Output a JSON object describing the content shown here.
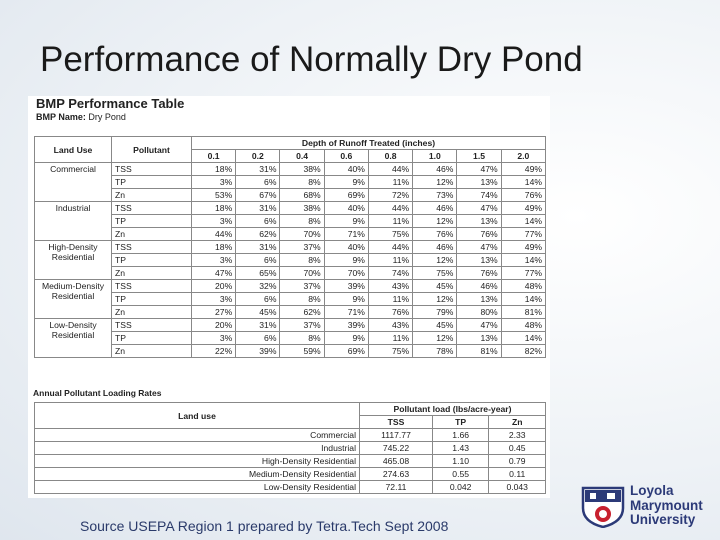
{
  "slide": {
    "title": "Performance of Normally Dry Pond",
    "source": "Source USEPA Region 1 prepared by Tetra.Tech Sept 2008"
  },
  "doc": {
    "title": "BMP Performance Table",
    "bmp_label": "BMP Name:",
    "bmp_value": "Dry Pond"
  },
  "table1": {
    "h_land_use": "Land Use",
    "h_pollutant": "Pollutant",
    "h_depth": "Depth of Runoff Treated (inches)",
    "depths": [
      "0.1",
      "0.2",
      "0.4",
      "0.6",
      "0.8",
      "1.0",
      "1.5",
      "2.0"
    ],
    "groups": [
      {
        "land_use": "Commercial",
        "rows": [
          {
            "pollutant": "TSS",
            "values": [
              "18%",
              "31%",
              "38%",
              "40%",
              "44%",
              "46%",
              "47%",
              "49%"
            ]
          },
          {
            "pollutant": "TP",
            "values": [
              "3%",
              "6%",
              "8%",
              "9%",
              "11%",
              "12%",
              "13%",
              "14%"
            ]
          },
          {
            "pollutant": "Zn",
            "values": [
              "53%",
              "67%",
              "68%",
              "69%",
              "72%",
              "73%",
              "74%",
              "76%"
            ]
          }
        ]
      },
      {
        "land_use": "Industrial",
        "rows": [
          {
            "pollutant": "TSS",
            "values": [
              "18%",
              "31%",
              "38%",
              "40%",
              "44%",
              "46%",
              "47%",
              "49%"
            ]
          },
          {
            "pollutant": "TP",
            "values": [
              "3%",
              "6%",
              "8%",
              "9%",
              "11%",
              "12%",
              "13%",
              "14%"
            ]
          },
          {
            "pollutant": "Zn",
            "values": [
              "44%",
              "62%",
              "70%",
              "71%",
              "75%",
              "76%",
              "76%",
              "77%"
            ]
          }
        ]
      },
      {
        "land_use": "High-Density Residential",
        "rows": [
          {
            "pollutant": "TSS",
            "values": [
              "18%",
              "31%",
              "37%",
              "40%",
              "44%",
              "46%",
              "47%",
              "49%"
            ]
          },
          {
            "pollutant": "TP",
            "values": [
              "3%",
              "6%",
              "8%",
              "9%",
              "11%",
              "12%",
              "13%",
              "14%"
            ]
          },
          {
            "pollutant": "Zn",
            "values": [
              "47%",
              "65%",
              "70%",
              "70%",
              "74%",
              "75%",
              "76%",
              "77%"
            ]
          }
        ]
      },
      {
        "land_use": "Medium-Density Residential",
        "rows": [
          {
            "pollutant": "TSS",
            "values": [
              "20%",
              "32%",
              "37%",
              "39%",
              "43%",
              "45%",
              "46%",
              "48%"
            ]
          },
          {
            "pollutant": "TP",
            "values": [
              "3%",
              "6%",
              "8%",
              "9%",
              "11%",
              "12%",
              "13%",
              "14%"
            ]
          },
          {
            "pollutant": "Zn",
            "values": [
              "27%",
              "45%",
              "62%",
              "71%",
              "76%",
              "79%",
              "80%",
              "81%"
            ]
          }
        ]
      },
      {
        "land_use": "Low-Density Residential",
        "rows": [
          {
            "pollutant": "TSS",
            "values": [
              "20%",
              "31%",
              "37%",
              "39%",
              "43%",
              "45%",
              "47%",
              "48%"
            ]
          },
          {
            "pollutant": "TP",
            "values": [
              "3%",
              "6%",
              "8%",
              "9%",
              "11%",
              "12%",
              "13%",
              "14%"
            ]
          },
          {
            "pollutant": "Zn",
            "values": [
              "22%",
              "39%",
              "59%",
              "69%",
              "75%",
              "78%",
              "81%",
              "82%"
            ]
          }
        ]
      }
    ]
  },
  "table2": {
    "section_title": "Annual Pollutant Loading Rates",
    "h_land_use": "Land use",
    "h_load": "Pollutant load (lbs/acre-year)",
    "cols": [
      "TSS",
      "TP",
      "Zn"
    ],
    "rows": [
      {
        "land_use": "Commercial",
        "values": [
          "1117.77",
          "1.66",
          "2.33"
        ]
      },
      {
        "land_use": "Industrial",
        "values": [
          "745.22",
          "1.43",
          "0.45"
        ]
      },
      {
        "land_use": "High-Density Residential",
        "values": [
          "465.08",
          "1.10",
          "0.79"
        ]
      },
      {
        "land_use": "Medium-Density Residential",
        "values": [
          "274.63",
          "0.55",
          "0.11"
        ]
      },
      {
        "land_use": "Low-Density Residential",
        "values": [
          "72.11",
          "0.042",
          "0.043"
        ]
      }
    ]
  },
  "logo": {
    "line1": "Loyola",
    "line2": "Marymount",
    "line3": "University",
    "color": "#2c3a78",
    "accent": "#c8202e"
  }
}
